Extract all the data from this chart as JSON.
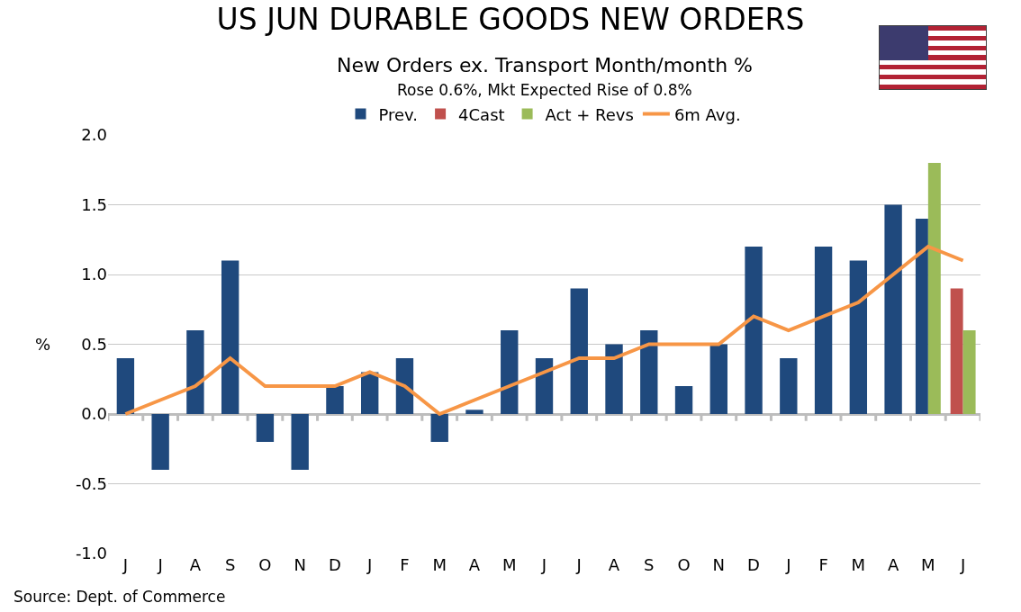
{
  "chart_data": {
    "type": "bar",
    "title": "US JUN DURABLE GOODS NEW ORDERS",
    "subtitle": "New Orders ex. Transport Month/month %\nRose 0.6%, Mkt Expected Rise of 0.8%",
    "ylabel": "%",
    "categories": [
      "J",
      "J",
      "A",
      "S",
      "O",
      "N",
      "D",
      "J",
      "F",
      "M",
      "A",
      "M",
      "J",
      "J",
      "A",
      "S",
      "O",
      "N",
      "D",
      "J",
      "F",
      "M",
      "A",
      "M",
      "J"
    ],
    "series": [
      {
        "name": "Prev.",
        "color": "#1f497d",
        "values": [
          0.4,
          -0.4,
          0.6,
          1.1,
          -0.2,
          -0.4,
          0.2,
          0.3,
          0.4,
          -0.2,
          0.03,
          0.6,
          0.4,
          0.9,
          0.5,
          0.6,
          0.2,
          0.5,
          1.2,
          0.4,
          1.2,
          1.1,
          1.5,
          1.4,
          null
        ]
      },
      {
        "name": "4Cast",
        "color": "#c0504d",
        "values": [
          null,
          null,
          null,
          null,
          null,
          null,
          null,
          null,
          null,
          null,
          null,
          null,
          null,
          null,
          null,
          null,
          null,
          null,
          null,
          null,
          null,
          null,
          null,
          null,
          0.9
        ]
      },
      {
        "name": "Act + Revs",
        "color": "#9bbb59",
        "values": [
          null,
          null,
          null,
          null,
          null,
          null,
          null,
          null,
          null,
          null,
          null,
          null,
          null,
          null,
          null,
          null,
          null,
          null,
          null,
          null,
          null,
          null,
          null,
          1.8,
          0.6
        ]
      },
      {
        "name": "6m Avg.",
        "type": "line",
        "color": "#f79646",
        "values": [
          0,
          0.1,
          0.2,
          0.4,
          0.2,
          0.2,
          0.2,
          0.3,
          0.2,
          0,
          0.1,
          0.2,
          0.3,
          0.4,
          0.4,
          0.5,
          0.5,
          0.5,
          0.7,
          0.6,
          0.7,
          0.8,
          1.0,
          1.2,
          1.1
        ]
      }
    ],
    "ylim": [
      -1,
      2
    ],
    "yticks": [
      {
        "value": -1,
        "label": "-1.0"
      },
      {
        "value": -0.5,
        "label": "-0.5"
      },
      {
        "value": 0,
        "label": "0.0"
      },
      {
        "value": 0.5,
        "label": "0.5"
      },
      {
        "value": 1,
        "label": "1.0"
      },
      {
        "value": 1.5,
        "label": "1.5"
      },
      {
        "value": 2,
        "label": "2.0"
      }
    ],
    "grid": "y",
    "legend": "top",
    "marker": "none",
    "line_style": "solid",
    "annotations": [
      "Source: Dept. of Commerce"
    ]
  }
}
